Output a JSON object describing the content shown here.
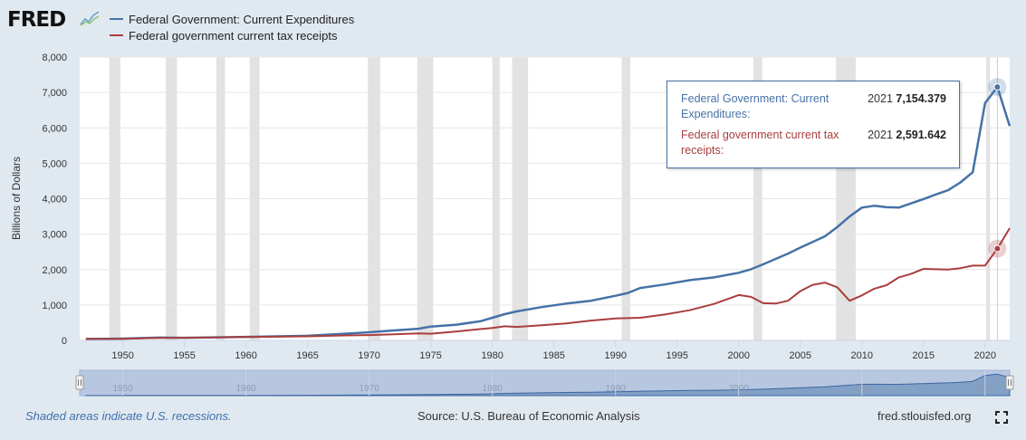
{
  "header": {
    "logo_text": "FRED",
    "logo_icon": "line-chart-icon"
  },
  "legend": [
    {
      "label": "Federal Government: Current Expenditures",
      "color": "#4572a7"
    },
    {
      "label": "Federal government current tax receipts",
      "color": "#aa3e3e"
    }
  ],
  "tooltip": {
    "rows": [
      {
        "name": "Federal Government: Current Expenditures:",
        "year": "2021",
        "value": "7,154.379",
        "color": "#4572a7"
      },
      {
        "name": "Federal government current tax receipts:",
        "year": "2021",
        "value": "2,591.642",
        "color": "#aa3e3e"
      }
    ]
  },
  "footer": {
    "recession_note": "Shaded areas indicate U.S. recessions.",
    "source": "Source: U.S. Bureau of Economic Analysis",
    "site": "fred.stlouisfed.org",
    "fullscreen_icon": "fullscreen-icon"
  },
  "colors": {
    "expenditures": "#4572a7",
    "receipts": "#aa3e3e",
    "recession": "#e2e2e2",
    "background": "#e1e9f0"
  },
  "chart_data": {
    "type": "line",
    "title": "",
    "xlabel": "",
    "ylabel": "Billions of Dollars",
    "xlim": [
      1946.5,
      2022
    ],
    "ylim": [
      0,
      8000
    ],
    "y_ticks": [
      0,
      1000,
      2000,
      3000,
      4000,
      5000,
      6000,
      7000,
      8000
    ],
    "y_tick_labels": [
      "0",
      "1,000",
      "2,000",
      "3,000",
      "4,000",
      "5,000",
      "6,000",
      "7,000",
      "8,000"
    ],
    "x_ticks": [
      1950,
      1955,
      1960,
      1965,
      1970,
      1975,
      1980,
      1985,
      1990,
      1995,
      2000,
      2005,
      2010,
      2015,
      2020
    ],
    "x_tick_labels": [
      "1950",
      "1955",
      "1960",
      "1965",
      "1970",
      "1975",
      "1980",
      "1985",
      "1990",
      "1995",
      "2000",
      "2005",
      "2010",
      "2015",
      "2020"
    ],
    "navigator_ticks": [
      1950,
      1960,
      1970,
      1980,
      1990,
      2000,
      2010,
      2020
    ],
    "navigator_labels": [
      "1950",
      "1960",
      "1970",
      "1980",
      "1990",
      "2000",
      "2010",
      "2020"
    ],
    "recessions": [
      [
        1948.9,
        1949.8
      ],
      [
        1953.5,
        1954.4
      ],
      [
        1957.6,
        1958.3
      ],
      [
        1960.3,
        1961.1
      ],
      [
        1969.9,
        1970.9
      ],
      [
        1973.9,
        1975.2
      ],
      [
        1980.0,
        1980.6
      ],
      [
        1981.6,
        1982.9
      ],
      [
        1990.5,
        1991.2
      ],
      [
        2001.2,
        2001.9
      ],
      [
        2007.9,
        2009.5
      ],
      [
        2020.1,
        2020.4
      ]
    ],
    "series": [
      {
        "name": "Federal Government: Current Expenditures",
        "color": "#4572a7",
        "x": [
          1947,
          1950,
          1953,
          1955,
          1960,
          1965,
          1968,
          1970,
          1972,
          1974,
          1975,
          1977,
          1979,
          1980,
          1981,
          1982,
          1984,
          1986,
          1988,
          1990,
          1991,
          1992,
          1994,
          1996,
          1998,
          2000,
          2001,
          2002,
          2003,
          2004,
          2005,
          2006,
          2007,
          2008,
          2009,
          2010,
          2011,
          2012,
          2013,
          2014,
          2015,
          2016,
          2017,
          2018,
          2019,
          2020,
          2021,
          2022
        ],
        "values": [
          40,
          50,
          80,
          75,
          100,
          130,
          190,
          230,
          280,
          330,
          390,
          440,
          540,
          640,
          740,
          820,
          940,
          1040,
          1120,
          1260,
          1340,
          1480,
          1580,
          1700,
          1780,
          1910,
          2010,
          2150,
          2300,
          2450,
          2620,
          2780,
          2940,
          3200,
          3500,
          3750,
          3800,
          3760,
          3750,
          3870,
          3990,
          4120,
          4240,
          4460,
          4750,
          6700,
          7154.379,
          6050
        ]
      },
      {
        "name": "Federal government current tax receipts",
        "color": "#aa3e3e",
        "x": [
          1947,
          1950,
          1953,
          1955,
          1960,
          1965,
          1968,
          1970,
          1972,
          1974,
          1975,
          1977,
          1979,
          1980,
          1981,
          1982,
          1984,
          1986,
          1988,
          1990,
          1991,
          1992,
          1994,
          1996,
          1998,
          2000,
          2001,
          2002,
          2003,
          2004,
          2005,
          2006,
          2007,
          2008,
          2009,
          2010,
          2011,
          2012,
          2013,
          2014,
          2015,
          2016,
          2017,
          2018,
          2019,
          2020,
          2021,
          2022
        ],
        "values": [
          40,
          45,
          70,
          75,
          95,
          115,
          140,
          150,
          170,
          200,
          190,
          250,
          320,
          350,
          400,
          380,
          430,
          480,
          560,
          620,
          630,
          640,
          730,
          850,
          1030,
          1280,
          1230,
          1050,
          1040,
          1120,
          1390,
          1570,
          1630,
          1500,
          1120,
          1270,
          1460,
          1560,
          1780,
          1880,
          2020,
          2010,
          2000,
          2040,
          2110,
          2110,
          2591.642,
          3170
        ]
      }
    ],
    "highlight_year": 2021
  }
}
